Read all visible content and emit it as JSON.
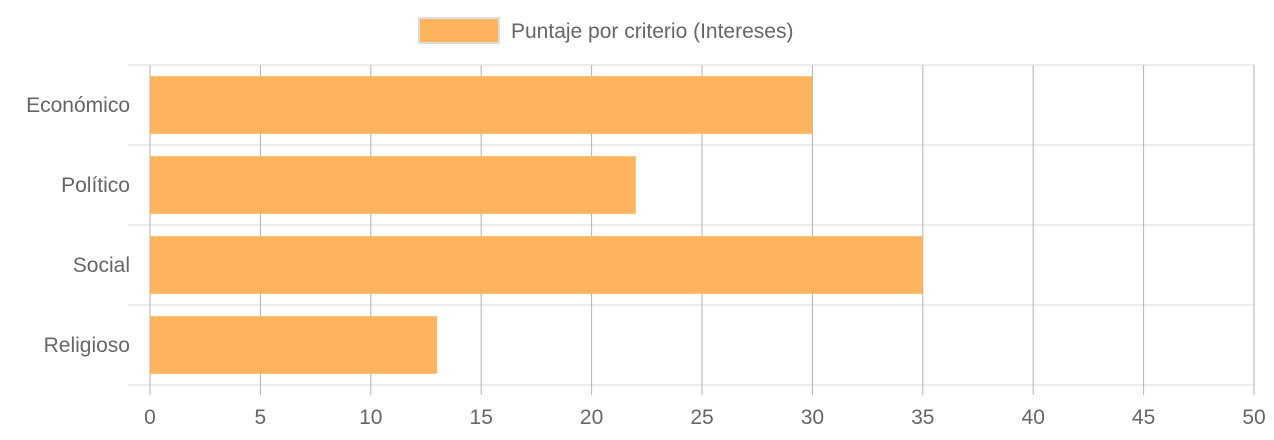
{
  "chart_data": {
    "type": "bar",
    "orientation": "horizontal",
    "categories": [
      "Económico",
      "Político",
      "Social",
      "Religioso"
    ],
    "series": [
      {
        "name": "Puntaje por criterio (Intereses)",
        "values": [
          30,
          22,
          35,
          13
        ],
        "color": "#fdb45c"
      }
    ],
    "xlim": [
      0,
      50
    ],
    "x_ticks": [
      0,
      5,
      10,
      15,
      20,
      25,
      30,
      35,
      40,
      45,
      50
    ],
    "title": "",
    "xlabel": "",
    "ylabel": "",
    "grid": true,
    "legend_position": "top"
  },
  "colors": {
    "bar": "#fdb45c",
    "grid": "#d9d9d9",
    "vertical_grid": "#b3b3b3",
    "text": "#666666"
  }
}
